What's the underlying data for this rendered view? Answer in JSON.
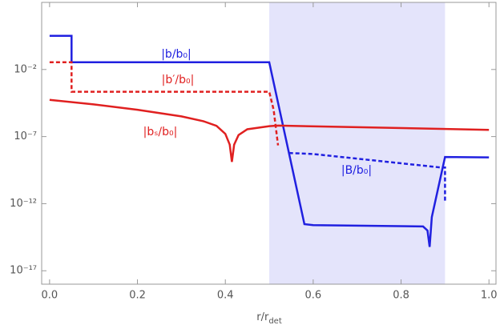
{
  "chart_data": {
    "type": "line",
    "x_label": {
      "text": "r/r",
      "sub": "det"
    },
    "xlim": [
      -0.018,
      1.016
    ],
    "xticks": [
      {
        "value": 0,
        "label": "0.0"
      },
      0.2,
      0.4,
      0.6,
      0.8,
      {
        "value": 1,
        "label": "1.0"
      }
    ],
    "ylim": [
      1e-18,
      1000
    ],
    "log_y": true,
    "yticks": [
      {
        "value": 0.01,
        "label": "10⁻²"
      },
      {
        "value": 1e-07,
        "label": "10⁻⁷"
      },
      {
        "value": 1e-12,
        "label": "10⁻¹²"
      },
      {
        "value": 1e-17,
        "label": "10⁻¹⁷"
      }
    ],
    "shaded_region": [
      0.5,
      0.9
    ],
    "shade_color": "#e4e4fb",
    "series": [
      {
        "name": "|b/b₀|",
        "color": "#2020e0",
        "dash": false,
        "x": [
          0,
          0.05,
          0.05,
          0.5,
          0.58,
          0.6,
          0.85,
          0.86,
          0.865,
          0.87,
          0.9,
          1.0
        ],
        "values": [
          3.2,
          3.2,
          0.035,
          0.035,
          3e-14,
          2.5e-14,
          2e-14,
          1e-14,
          6e-16,
          1e-13,
          3e-09,
          2.8e-09
        ]
      },
      {
        "name": "|b′/b₀|",
        "color": "#e02020",
        "dash": true,
        "x": [
          0,
          0.05,
          0.05,
          0.5,
          0.51,
          0.52
        ],
        "values": [
          0.035,
          0.035,
          0.00022,
          0.00022,
          1e-05,
          2.2e-08
        ]
      },
      {
        "name": "|bₛ/b₀|",
        "color": "#e02020",
        "dash": false,
        "x": [
          0,
          0.1,
          0.2,
          0.3,
          0.35,
          0.38,
          0.4,
          0.41,
          0.415,
          0.42,
          0.43,
          0.45,
          0.5,
          0.52,
          0.7,
          1.0
        ],
        "values": [
          5.5e-05,
          2.5e-05,
          1e-05,
          3.2e-06,
          1.4e-06,
          6.3e-07,
          1.6e-07,
          2.5e-08,
          1.3e-09,
          2.5e-08,
          1.3e-07,
          3.5e-07,
          6e-07,
          6.6e-07,
          5e-07,
          3.2e-07
        ]
      },
      {
        "name": "|B/b₀|",
        "color": "#2020e0",
        "dash": true,
        "x": [
          0.545,
          0.6,
          0.89,
          0.9,
          0.9
        ],
        "values": [
          6e-09,
          5e-09,
          5e-10,
          5e-10,
          1.3e-12
        ]
      }
    ]
  }
}
